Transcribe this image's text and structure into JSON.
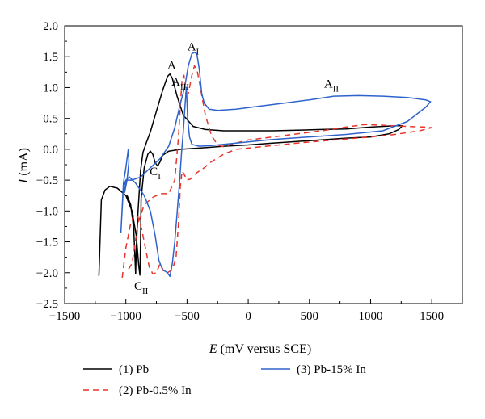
{
  "chart_data": {
    "type": "line",
    "title": "",
    "xlabel_var": "E",
    "xlabel_rest": " (mV versus SCE)",
    "ylabel_var": "I",
    "ylabel_rest": " (mA)",
    "xlim": [
      -1500,
      1750
    ],
    "ylim": [
      -2.5,
      2.0
    ],
    "xticks": [
      -1500,
      -1000,
      -500,
      0,
      500,
      1000,
      1500
    ],
    "yticks": [
      -2.5,
      -2.0,
      -1.5,
      -1.0,
      -0.5,
      0.0,
      0.5,
      1.0,
      1.5,
      2.0
    ],
    "ytick_labels": [
      "−2.5",
      "−2.0",
      "−1.5",
      "−1.0",
      "−0.5",
      "0.0",
      "0.5",
      "1.0",
      "1.5",
      "2.0"
    ],
    "xtick_labels": [
      "−1500",
      "−1000",
      "−500",
      "0",
      "500",
      "1000",
      "1500"
    ],
    "legend_placement": "bottom",
    "series": [
      {
        "name": "(1) Pb",
        "color": "#000000",
        "dash": "",
        "points": [
          [
            -1220,
            -2.05
          ],
          [
            -1200,
            -0.82
          ],
          [
            -1170,
            -0.66
          ],
          [
            -1130,
            -0.6
          ],
          [
            -1070,
            -0.63
          ],
          [
            -1000,
            -0.75
          ],
          [
            -950,
            -1.0
          ],
          [
            -915,
            -1.4
          ],
          [
            -895,
            -1.88
          ],
          [
            -885,
            -2.04
          ],
          [
            -880,
            -1.5
          ],
          [
            -875,
            -0.8
          ],
          [
            -850,
            -0.3
          ],
          [
            -820,
            -0.08
          ],
          [
            -800,
            -0.03
          ],
          [
            -780,
            -0.08
          ],
          [
            -760,
            -0.22
          ],
          [
            -740,
            -0.27
          ],
          [
            -720,
            -0.2
          ],
          [
            -700,
            -0.1
          ],
          [
            -650,
            -0.03
          ],
          [
            -550,
            0.0
          ],
          [
            -400,
            0.02
          ],
          [
            -200,
            0.05
          ],
          [
            0,
            0.07
          ],
          [
            200,
            0.1
          ],
          [
            500,
            0.14
          ],
          [
            800,
            0.18
          ],
          [
            1000,
            0.2
          ],
          [
            1150,
            0.25
          ],
          [
            1230,
            0.32
          ],
          [
            1260,
            0.38
          ],
          [
            1200,
            0.38
          ],
          [
            1000,
            0.36
          ],
          [
            800,
            0.33
          ],
          [
            600,
            0.32
          ],
          [
            400,
            0.31
          ],
          [
            200,
            0.3
          ],
          [
            0,
            0.3
          ],
          [
            -200,
            0.3
          ],
          [
            -350,
            0.32
          ],
          [
            -450,
            0.37
          ],
          [
            -530,
            0.55
          ],
          [
            -580,
            0.85
          ],
          [
            -620,
            1.15
          ],
          [
            -640,
            1.22
          ],
          [
            -660,
            1.18
          ],
          [
            -700,
            0.95
          ],
          [
            -760,
            0.55
          ],
          [
            -800,
            0.28
          ],
          [
            -830,
            0.12
          ],
          [
            -860,
            -0.05
          ],
          [
            -880,
            -0.35
          ],
          [
            -900,
            -1.0
          ],
          [
            -915,
            -1.6
          ],
          [
            -920,
            -2.02
          ],
          [
            -935,
            -1.3
          ],
          [
            -960,
            -0.9
          ],
          [
            -990,
            -0.75
          ]
        ]
      },
      {
        "name": "(2) Pb-0.5% In",
        "color": "#e8342b",
        "dash": "7,5",
        "points": [
          [
            -1030,
            -2.08
          ],
          [
            -1000,
            -1.6
          ],
          [
            -960,
            -1.2
          ],
          [
            -930,
            -1.05
          ],
          [
            -900,
            -1.1
          ],
          [
            -870,
            -1.3
          ],
          [
            -840,
            -1.6
          ],
          [
            -810,
            -1.9
          ],
          [
            -780,
            -2.02
          ],
          [
            -750,
            -2.0
          ],
          [
            -720,
            -1.85
          ],
          [
            -690,
            -1.98
          ],
          [
            -660,
            -2.0
          ],
          [
            -620,
            -1.95
          ],
          [
            -590,
            -1.75
          ],
          [
            -570,
            -1.2
          ],
          [
            -555,
            -0.6
          ],
          [
            -540,
            -0.35
          ],
          [
            -520,
            -0.42
          ],
          [
            -500,
            -0.5
          ],
          [
            -470,
            -0.48
          ],
          [
            -420,
            -0.38
          ],
          [
            -360,
            -0.3
          ],
          [
            -300,
            -0.2
          ],
          [
            -200,
            -0.08
          ],
          [
            -100,
            0.0
          ],
          [
            0,
            0.02
          ],
          [
            200,
            0.06
          ],
          [
            400,
            0.1
          ],
          [
            700,
            0.15
          ],
          [
            1000,
            0.2
          ],
          [
            1200,
            0.24
          ],
          [
            1400,
            0.3
          ],
          [
            1500,
            0.35
          ],
          [
            1450,
            0.36
          ],
          [
            1300,
            0.37
          ],
          [
            1100,
            0.39
          ],
          [
            950,
            0.4
          ],
          [
            800,
            0.36
          ],
          [
            600,
            0.3
          ],
          [
            400,
            0.25
          ],
          [
            200,
            0.2
          ],
          [
            0,
            0.15
          ],
          [
            -100,
            0.1
          ],
          [
            -200,
            0.04
          ],
          [
            -250,
            0.07
          ],
          [
            -300,
            0.22
          ],
          [
            -350,
            0.55
          ],
          [
            -400,
            1.1
          ],
          [
            -420,
            1.3
          ],
          [
            -440,
            1.35
          ],
          [
            -460,
            1.2
          ],
          [
            -490,
            0.9
          ],
          [
            -510,
            0.9
          ],
          [
            -525,
            1.2
          ],
          [
            -540,
            1.15
          ],
          [
            -555,
            0.7
          ],
          [
            -570,
            0.2
          ],
          [
            -600,
            -0.5
          ],
          [
            -650,
            -0.72
          ],
          [
            -720,
            -0.72
          ],
          [
            -780,
            -0.78
          ],
          [
            -850,
            -0.9
          ],
          [
            -900,
            -1.2
          ],
          [
            -930,
            -1.6
          ],
          [
            -950,
            -1.85
          ],
          [
            -980,
            -1.95
          ]
        ]
      },
      {
        "name": "(3) Pb-15% In",
        "color": "#2f63cc",
        "dash": "",
        "points": [
          [
            -1040,
            -1.35
          ],
          [
            -1020,
            -0.55
          ],
          [
            -1000,
            -0.3
          ],
          [
            -980,
            0.0
          ],
          [
            -975,
            -0.2
          ],
          [
            -990,
            -0.5
          ],
          [
            -1010,
            -0.7
          ],
          [
            -1000,
            -0.5
          ],
          [
            -970,
            -0.45
          ],
          [
            -920,
            -0.55
          ],
          [
            -850,
            -0.75
          ],
          [
            -800,
            -1.0
          ],
          [
            -760,
            -1.4
          ],
          [
            -730,
            -1.8
          ],
          [
            -700,
            -1.95
          ],
          [
            -660,
            -2.0
          ],
          [
            -640,
            -2.06
          ],
          [
            -620,
            -1.85
          ],
          [
            -600,
            -1.5
          ],
          [
            -580,
            -1.0
          ],
          [
            -560,
            -0.5
          ],
          [
            -545,
            -0.05
          ],
          [
            -530,
            0.3
          ],
          [
            -515,
            0.75
          ],
          [
            -505,
            1.0
          ],
          [
            -495,
            0.5
          ],
          [
            -480,
            0.2
          ],
          [
            -460,
            0.08
          ],
          [
            -400,
            0.05
          ],
          [
            -300,
            0.06
          ],
          [
            -100,
            0.1
          ],
          [
            200,
            0.16
          ],
          [
            500,
            0.2
          ],
          [
            800,
            0.24
          ],
          [
            1100,
            0.3
          ],
          [
            1300,
            0.45
          ],
          [
            1450,
            0.68
          ],
          [
            1490,
            0.77
          ],
          [
            1450,
            0.8
          ],
          [
            1300,
            0.84
          ],
          [
            1100,
            0.86
          ],
          [
            900,
            0.87
          ],
          [
            700,
            0.86
          ],
          [
            500,
            0.8
          ],
          [
            300,
            0.75
          ],
          [
            100,
            0.7
          ],
          [
            -100,
            0.65
          ],
          [
            -250,
            0.63
          ],
          [
            -320,
            0.65
          ],
          [
            -360,
            0.75
          ],
          [
            -380,
            0.9
          ],
          [
            -400,
            1.3
          ],
          [
            -420,
            1.55
          ],
          [
            -440,
            1.57
          ],
          [
            -460,
            1.55
          ],
          [
            -490,
            1.35
          ],
          [
            -520,
            1.0
          ],
          [
            -560,
            0.7
          ],
          [
            -600,
            0.35
          ],
          [
            -650,
            0.05
          ],
          [
            -720,
            -0.15
          ],
          [
            -800,
            -0.3
          ],
          [
            -880,
            -0.45
          ],
          [
            -950,
            -0.5
          ],
          [
            -1000,
            -0.5
          ],
          [
            -1020,
            -0.6
          ],
          [
            -1040,
            -1.35
          ]
        ]
      }
    ],
    "annotations": [
      {
        "base": "A",
        "sub": "I",
        "x": -450,
        "y": 1.6
      },
      {
        "base": "A",
        "sub": "",
        "x": -625,
        "y": 1.3
      },
      {
        "base": "A",
        "sub": "III",
        "x": -555,
        "y": 1.03
      },
      {
        "base": "A",
        "sub": "II",
        "x": 680,
        "y": 1.0
      },
      {
        "base": "C",
        "sub": "I",
        "x": -760,
        "y": -0.42
      },
      {
        "base": "C",
        "sub": "II",
        "x": -875,
        "y": -2.28
      }
    ]
  }
}
